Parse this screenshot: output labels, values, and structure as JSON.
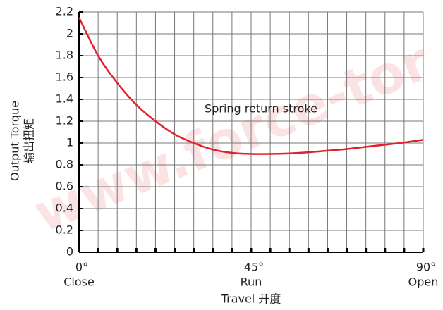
{
  "chart_data": {
    "type": "line",
    "watermark": "www.force-tor",
    "annotation": "Spring return stroke",
    "ylabel": [
      "Output Torque",
      "输出扭矩"
    ],
    "xlabel": "Travel 开度",
    "x": [
      0,
      5,
      10,
      15,
      20,
      25,
      30,
      35,
      40,
      45,
      50,
      55,
      60,
      65,
      70,
      75,
      80,
      85,
      90
    ],
    "series": [
      {
        "name": "Output Torque",
        "color": "#e0202a",
        "values": [
          2.15,
          1.8,
          1.55,
          1.35,
          1.2,
          1.08,
          1.0,
          0.94,
          0.91,
          0.9,
          0.9,
          0.905,
          0.915,
          0.93,
          0.945,
          0.965,
          0.985,
          1.005,
          1.03
        ]
      }
    ],
    "xlim": [
      0,
      90
    ],
    "xticks": [
      {
        "value": 0,
        "label": "0°"
      },
      {
        "value": 45,
        "label": "45°"
      },
      {
        "value": 90,
        "label": "90°"
      }
    ],
    "xtick_names": [
      "Close",
      "Run",
      "Open"
    ],
    "xminor_ticks": [
      0,
      5,
      10,
      15,
      20,
      25,
      30,
      35,
      40,
      45,
      50,
      55,
      60,
      65,
      70,
      75,
      80,
      85,
      90
    ],
    "ylim": [
      0,
      2.2
    ],
    "yticks": [
      0,
      0.2,
      0.4,
      0.6,
      0.8,
      1,
      1.2,
      1.4,
      1.6,
      1.8,
      2,
      2.2
    ],
    "grid": true
  }
}
